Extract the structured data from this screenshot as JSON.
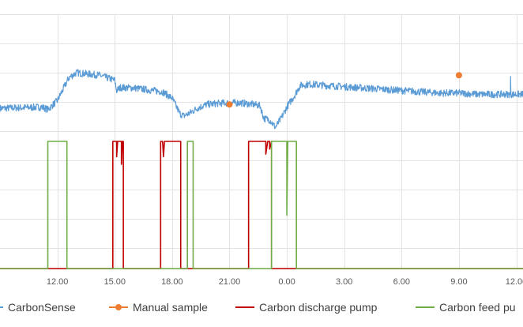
{
  "chart_data": {
    "type": "line",
    "title": "",
    "xlabel": "",
    "ylabel": "",
    "x_unit": "hours",
    "xlim": [
      9.0,
      36.35
    ],
    "ylim": [
      0,
      100
    ],
    "grid": true,
    "legend_position": "bottom",
    "x_ticks": [
      {
        "x": 12,
        "label": "12.00"
      },
      {
        "x": 15,
        "label": "15.00"
      },
      {
        "x": 18,
        "label": "18.00"
      },
      {
        "x": 21,
        "label": "21.00"
      },
      {
        "x": 24,
        "label": "0.00"
      },
      {
        "x": 27,
        "label": "3.00"
      },
      {
        "x": 30,
        "label": "6.00"
      },
      {
        "x": 33,
        "label": "9.00"
      },
      {
        "x": 36,
        "label": "12.00"
      }
    ],
    "y_gridlines": [
      100,
      88.5,
      77,
      65.5,
      54,
      42.5,
      31,
      19.5,
      8,
      0
    ],
    "series": [
      {
        "name": "CarbonSense",
        "style": "line",
        "color": "#5B9BD5",
        "noise": 1.4,
        "points": [
          [
            9.0,
            63
          ],
          [
            11.2,
            63.5
          ],
          [
            11.5,
            62.5
          ],
          [
            12.0,
            66
          ],
          [
            12.6,
            75
          ],
          [
            13.0,
            77
          ],
          [
            13.6,
            76.5
          ],
          [
            14.2,
            76
          ],
          [
            14.8,
            74.5
          ],
          [
            15.0,
            74
          ],
          [
            15.1,
            70
          ],
          [
            15.3,
            71.2
          ],
          [
            16.0,
            71
          ],
          [
            17.0,
            70
          ],
          [
            17.5,
            69.5
          ],
          [
            18.0,
            67
          ],
          [
            18.4,
            61
          ],
          [
            18.6,
            60
          ],
          [
            18.9,
            61
          ],
          [
            19.3,
            63
          ],
          [
            19.8,
            64.5
          ],
          [
            20.5,
            65
          ],
          [
            21.5,
            65.2
          ],
          [
            22.3,
            64.5
          ],
          [
            22.6,
            64
          ],
          [
            22.8,
            59
          ],
          [
            23.1,
            58.5
          ],
          [
            23.3,
            56.5
          ],
          [
            23.4,
            55.5
          ],
          [
            23.7,
            59
          ],
          [
            24.0,
            63.5
          ],
          [
            24.4,
            68
          ],
          [
            24.7,
            72
          ],
          [
            25.2,
            72.5
          ],
          [
            26.0,
            72
          ],
          [
            27.0,
            71.5
          ],
          [
            28.0,
            71
          ],
          [
            29.0,
            70.5
          ],
          [
            30.0,
            70
          ],
          [
            31.0,
            69.5
          ],
          [
            32.0,
            69
          ],
          [
            33.0,
            69
          ],
          [
            34.0,
            68.5
          ],
          [
            35.0,
            68.5
          ],
          [
            36.35,
            68.5
          ]
        ],
        "spikes": [
          [
            13.5,
            77.5
          ],
          [
            35.7,
            75.5
          ]
        ]
      },
      {
        "name": "Manual sample",
        "style": "marker",
        "color": "#ED7D31",
        "points": [
          [
            21.0,
            64.5
          ],
          [
            33.0,
            76
          ]
        ]
      },
      {
        "name": "Carbon discharge pump",
        "style": "line",
        "color": "#C00000",
        "points": [
          [
            9.0,
            0
          ],
          [
            14.9,
            0
          ],
          [
            14.9,
            50
          ],
          [
            15.1,
            50
          ],
          [
            15.1,
            44
          ],
          [
            15.15,
            50
          ],
          [
            15.35,
            50
          ],
          [
            15.35,
            41
          ],
          [
            15.4,
            50
          ],
          [
            15.45,
            50
          ],
          [
            15.45,
            0
          ],
          [
            17.4,
            0
          ],
          [
            17.4,
            50
          ],
          [
            17.5,
            50
          ],
          [
            17.55,
            44
          ],
          [
            17.6,
            50
          ],
          [
            18.45,
            50
          ],
          [
            18.45,
            0
          ],
          [
            22.0,
            0
          ],
          [
            22.0,
            50
          ],
          [
            22.9,
            50
          ],
          [
            22.9,
            45
          ],
          [
            23.0,
            50
          ],
          [
            23.1,
            50
          ],
          [
            23.1,
            47
          ],
          [
            23.2,
            50
          ],
          [
            23.2,
            0
          ],
          [
            36.35,
            0
          ]
        ]
      },
      {
        "name": "Carbon feed pump",
        "style": "line",
        "color": "#70AD47",
        "points": [
          [
            9.0,
            0
          ],
          [
            11.5,
            0
          ],
          [
            11.5,
            50
          ],
          [
            12.5,
            50
          ],
          [
            12.5,
            0
          ],
          [
            18.8,
            0
          ],
          [
            18.8,
            50
          ],
          [
            19.1,
            50
          ],
          [
            19.1,
            0
          ],
          [
            23.2,
            0
          ],
          [
            23.2,
            50
          ],
          [
            24.0,
            50
          ],
          [
            24.0,
            21
          ],
          [
            24.05,
            50
          ],
          [
            24.5,
            50
          ],
          [
            24.5,
            0
          ],
          [
            36.35,
            0
          ]
        ]
      }
    ],
    "legend": [
      {
        "label": "CarbonSense",
        "color": "#5B9BD5",
        "kind": "line"
      },
      {
        "label": "Manual sample",
        "color": "#ED7D31",
        "kind": "line-marker"
      },
      {
        "label": "Carbon discharge pump",
        "color": "#C00000",
        "kind": "line"
      },
      {
        "label": "Carbon feed pu",
        "color": "#70AD47",
        "kind": "line"
      }
    ]
  }
}
